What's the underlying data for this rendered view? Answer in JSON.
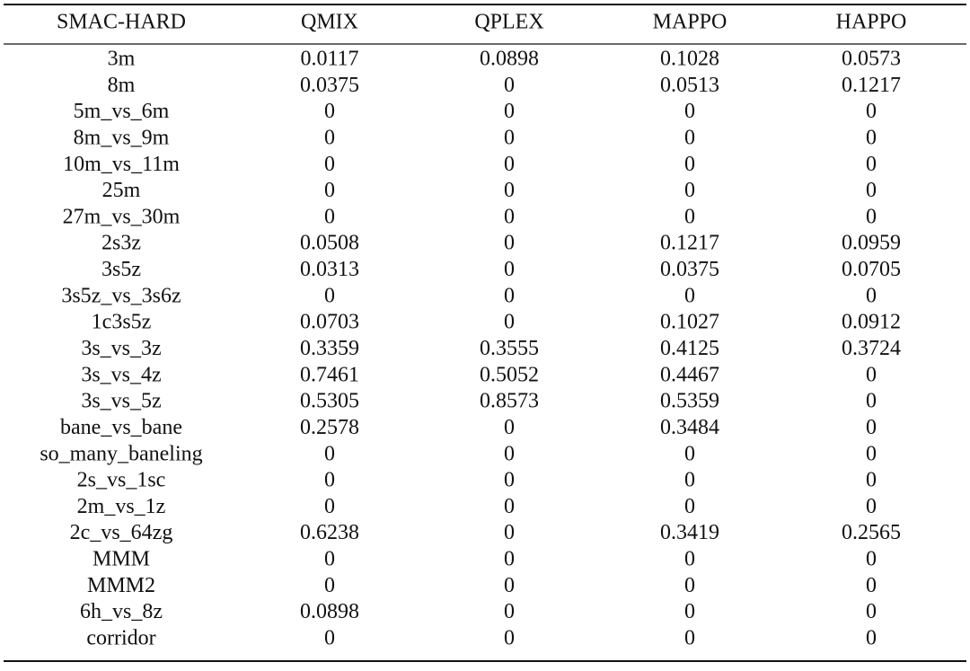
{
  "table": {
    "header": [
      "SMAC-HARD",
      "QMIX",
      "QPLEX",
      "MAPPO",
      "HAPPO"
    ],
    "rows": [
      [
        "3m",
        "0.0117",
        "0.0898",
        "0.1028",
        "0.0573"
      ],
      [
        "8m",
        "0.0375",
        "0",
        "0.0513",
        "0.1217"
      ],
      [
        "5m_vs_6m",
        "0",
        "0",
        "0",
        "0"
      ],
      [
        "8m_vs_9m",
        "0",
        "0",
        "0",
        "0"
      ],
      [
        "10m_vs_11m",
        "0",
        "0",
        "0",
        "0"
      ],
      [
        "25m",
        "0",
        "0",
        "0",
        "0"
      ],
      [
        "27m_vs_30m",
        "0",
        "0",
        "0",
        "0"
      ],
      [
        "2s3z",
        "0.0508",
        "0",
        "0.1217",
        "0.0959"
      ],
      [
        "3s5z",
        "0.0313",
        "0",
        "0.0375",
        "0.0705"
      ],
      [
        "3s5z_vs_3s6z",
        "0",
        "0",
        "0",
        "0"
      ],
      [
        "1c3s5z",
        "0.0703",
        "0",
        "0.1027",
        "0.0912"
      ],
      [
        "3s_vs_3z",
        "0.3359",
        "0.3555",
        "0.4125",
        "0.3724"
      ],
      [
        "3s_vs_4z",
        "0.7461",
        "0.5052",
        "0.4467",
        "0"
      ],
      [
        "3s_vs_5z",
        "0.5305",
        "0.8573",
        "0.5359",
        "0"
      ],
      [
        "bane_vs_bane",
        "0.2578",
        "0",
        "0.3484",
        "0"
      ],
      [
        "so_many_baneling",
        "0",
        "0",
        "0",
        "0"
      ],
      [
        "2s_vs_1sc",
        "0",
        "0",
        "0",
        "0"
      ],
      [
        "2m_vs_1z",
        "0",
        "0",
        "0",
        "0"
      ],
      [
        "2c_vs_64zg",
        "0.6238",
        "0",
        "0.3419",
        "0.2565"
      ],
      [
        "MMM",
        "0",
        "0",
        "0",
        "0"
      ],
      [
        "MMM2",
        "0",
        "0",
        "0",
        "0"
      ],
      [
        "6h_vs_8z",
        "0.0898",
        "0",
        "0",
        "0"
      ],
      [
        "corridor",
        "0",
        "0",
        "0",
        "0"
      ]
    ]
  }
}
